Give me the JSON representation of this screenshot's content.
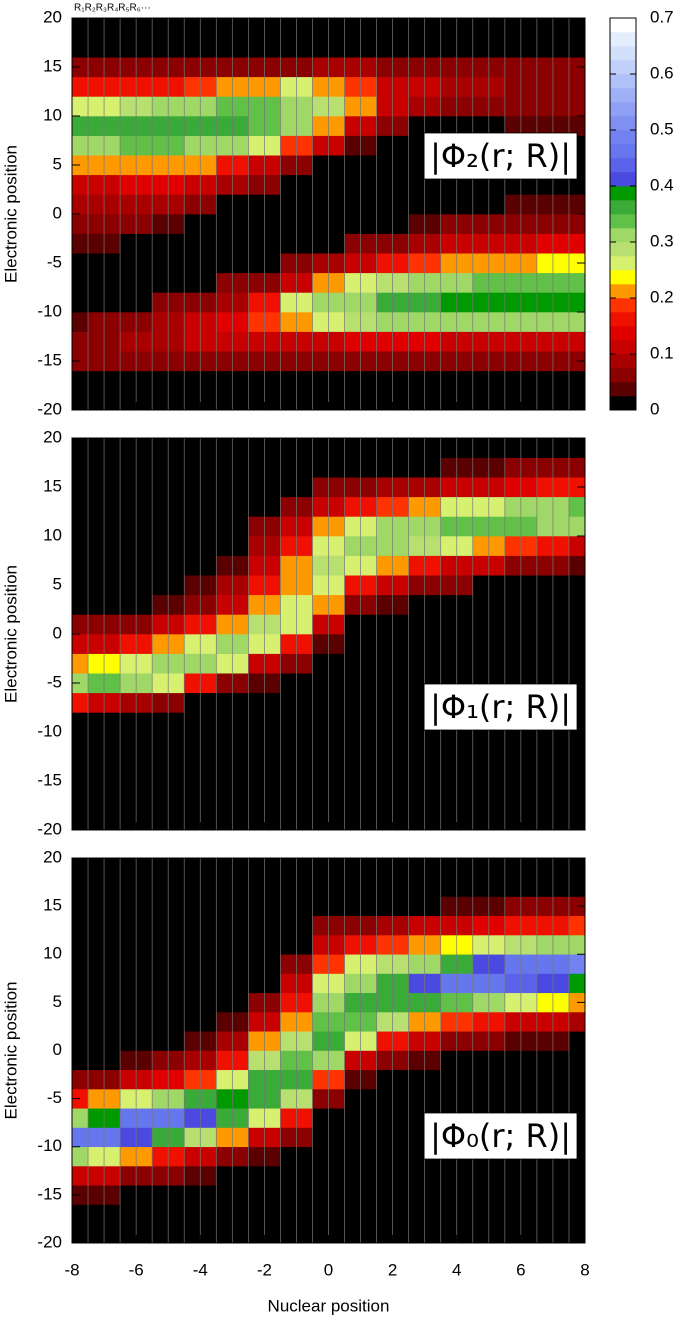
{
  "chart_data": [
    {
      "type": "heatmap",
      "top_annotation": "R₁R₂R₃R₄R₅R₆···",
      "annotation": "|Φ₂(r; R)|",
      "ylabel": "Electronic position",
      "show_xtick_labels": false,
      "x": [
        -8,
        -7,
        -6,
        -5,
        -4,
        -3,
        -2,
        -1,
        0,
        1,
        2,
        3,
        4,
        5,
        6,
        7,
        8
      ],
      "y": [
        -19,
        -17,
        -15,
        -13,
        -11,
        -9,
        -7,
        -5,
        -3,
        -1,
        1,
        3,
        5,
        7,
        9,
        11,
        13,
        15,
        17,
        19
      ],
      "z": [
        [
          0,
          0,
          0.05,
          0.05,
          0.03,
          0,
          0,
          0,
          0.03,
          0.05,
          0.08,
          0.12,
          0.2,
          0.3,
          0.35,
          0.25,
          0.15,
          0.05,
          0,
          0
        ],
        [
          0,
          0,
          0.05,
          0.07,
          0.05,
          0,
          0,
          0,
          0.03,
          0.05,
          0.08,
          0.12,
          0.2,
          0.32,
          0.35,
          0.27,
          0.15,
          0.05,
          0,
          0
        ],
        [
          0,
          0,
          0.05,
          0.08,
          0.07,
          0,
          0,
          0,
          0,
          0.05,
          0.08,
          0.13,
          0.22,
          0.33,
          0.36,
          0.28,
          0.15,
          0.05,
          0,
          0
        ],
        [
          0,
          0,
          0.05,
          0.08,
          0.08,
          0.05,
          0,
          0,
          0,
          0.04,
          0.08,
          0.13,
          0.22,
          0.33,
          0.36,
          0.3,
          0.17,
          0.05,
          0,
          0
        ],
        [
          0,
          0,
          0.05,
          0.1,
          0.1,
          0.06,
          0,
          0,
          0,
          0,
          0.05,
          0.1,
          0.2,
          0.32,
          0.36,
          0.32,
          0.18,
          0.05,
          0,
          0
        ],
        [
          0,
          0,
          0.05,
          0.1,
          0.13,
          0.08,
          0.05,
          0,
          0,
          0,
          0,
          0.08,
          0.15,
          0.3,
          0.35,
          0.33,
          0.2,
          0.05,
          0,
          0
        ],
        [
          0,
          0,
          0.05,
          0.1,
          0.18,
          0.15,
          0.07,
          0,
          0,
          0,
          0,
          0.05,
          0.1,
          0.25,
          0.33,
          0.33,
          0.22,
          0.07,
          0,
          0
        ],
        [
          0,
          0,
          0.05,
          0.12,
          0.22,
          0.25,
          0.12,
          0.05,
          0,
          0,
          0,
          0,
          0.05,
          0.18,
          0.3,
          0.3,
          0.25,
          0.07,
          0,
          0
        ],
        [
          0,
          0,
          0.05,
          0.12,
          0.25,
          0.3,
          0.2,
          0.08,
          0,
          0,
          0,
          0,
          0,
          0.1,
          0.22,
          0.28,
          0.22,
          0.08,
          0,
          0
        ],
        [
          0,
          0,
          0.05,
          0.13,
          0.28,
          0.32,
          0.25,
          0.12,
          0.05,
          0,
          0,
          0,
          0,
          0.03,
          0.12,
          0.2,
          0.18,
          0.08,
          0,
          0
        ],
        [
          0,
          0,
          0.05,
          0.13,
          0.3,
          0.35,
          0.28,
          0.15,
          0.07,
          0,
          0,
          0,
          0,
          0,
          0.05,
          0.1,
          0.12,
          0.07,
          0,
          0
        ],
        [
          0,
          0,
          0.05,
          0.13,
          0.3,
          0.37,
          0.3,
          0.18,
          0.08,
          0.03,
          0,
          0,
          0,
          0,
          0,
          0.08,
          0.1,
          0.06,
          0,
          0
        ],
        [
          0,
          0,
          0.05,
          0.12,
          0.3,
          0.38,
          0.32,
          0.2,
          0.1,
          0.05,
          0,
          0,
          0,
          0,
          0,
          0.05,
          0.08,
          0.05,
          0,
          0
        ],
        [
          0,
          0,
          0.05,
          0.12,
          0.3,
          0.38,
          0.33,
          0.22,
          0.12,
          0.05,
          0,
          0,
          0,
          0,
          0,
          0.05,
          0.08,
          0.05,
          0,
          0
        ],
        [
          0,
          0,
          0.05,
          0.12,
          0.3,
          0.38,
          0.33,
          0.22,
          0.12,
          0.06,
          0.03,
          0,
          0,
          0,
          0.03,
          0.05,
          0.07,
          0.05,
          0,
          0
        ],
        [
          0,
          0,
          0.05,
          0.12,
          0.3,
          0.38,
          0.33,
          0.23,
          0.13,
          0.07,
          0.03,
          0,
          0,
          0,
          0.03,
          0.05,
          0.07,
          0.05,
          0,
          0
        ],
        [
          0,
          0,
          0.05,
          0.12,
          0.3,
          0.38,
          0.33,
          0.23,
          0.13,
          0.07,
          0.03,
          0,
          0,
          0,
          0.03,
          0.05,
          0.07,
          0.05,
          0,
          0
        ]
      ],
      "xlim": [
        -8,
        8
      ],
      "ylim": [
        -20,
        20
      ],
      "xticks": [
        -8,
        -6,
        -4,
        -2,
        0,
        2,
        4,
        6,
        8
      ],
      "yticks": [
        -20,
        -15,
        -10,
        -5,
        0,
        5,
        10,
        15,
        20
      ],
      "colorbar": {
        "zlim": [
          0,
          0.7
        ],
        "zticks": [
          0,
          0.1,
          0.2,
          0.3,
          0.4,
          0.5,
          0.6,
          0.7
        ],
        "colors": [
          "#000000",
          "#5a0000",
          "#8b0000",
          "#a80000",
          "#c80000",
          "#e00000",
          "#f01000",
          "#ff3300",
          "#ff9900",
          "#ffff00",
          "#d8f070",
          "#b8e070",
          "#a0d868",
          "#60c048",
          "#3aaa38",
          "#009900",
          "#4a4ae0",
          "#5a62ea",
          "#6677ee",
          "#7282f0",
          "#8090f2",
          "#90a0f4",
          "#a0b0f6",
          "#b0c0f8",
          "#c0d0fa",
          "#d2e0fc",
          "#e4eefd",
          "#ffffff"
        ]
      }
    },
    {
      "type": "heatmap",
      "annotation": "|Φ₁(r; R)|",
      "ylabel": "Electronic position",
      "show_xtick_labels": false,
      "x": [
        -8,
        -7,
        -6,
        -5,
        -4,
        -3,
        -2,
        -1,
        0,
        1,
        2,
        3,
        4,
        5,
        6,
        7,
        8
      ],
      "y": [
        -19,
        -17,
        -15,
        -13,
        -11,
        -9,
        -7,
        -5,
        -3,
        -1,
        1,
        3,
        5,
        7,
        9,
        11,
        13,
        15,
        17,
        19
      ],
      "z": [
        [
          0,
          0,
          0,
          0,
          0,
          0,
          0.15,
          0.32,
          0.2,
          0.1,
          0.05,
          0,
          0,
          0,
          0,
          0,
          0,
          0,
          0,
          0
        ],
        [
          0,
          0,
          0,
          0,
          0,
          0,
          0.12,
          0.33,
          0.23,
          0.12,
          0.05,
          0,
          0,
          0,
          0,
          0,
          0,
          0,
          0,
          0
        ],
        [
          0,
          0,
          0,
          0,
          0,
          0,
          0.08,
          0.32,
          0.27,
          0.15,
          0.07,
          0,
          0,
          0,
          0,
          0,
          0,
          0,
          0,
          0
        ],
        [
          0,
          0,
          0,
          0,
          0,
          0,
          0.05,
          0.25,
          0.3,
          0.2,
          0.1,
          0.04,
          0,
          0,
          0,
          0,
          0,
          0,
          0,
          0
        ],
        [
          0,
          0,
          0,
          0,
          0,
          0,
          0,
          0.15,
          0.32,
          0.27,
          0.15,
          0.07,
          0.03,
          0,
          0,
          0,
          0,
          0,
          0,
          0
        ],
        [
          0,
          0,
          0,
          0,
          0,
          0,
          0,
          0.07,
          0.25,
          0.3,
          0.22,
          0.12,
          0.08,
          0.04,
          0,
          0,
          0,
          0,
          0,
          0
        ],
        [
          0,
          0,
          0,
          0,
          0,
          0,
          0,
          0.03,
          0.12,
          0.27,
          0.28,
          0.22,
          0.15,
          0.1,
          0.08,
          0.05,
          0,
          0,
          0,
          0
        ],
        [
          0,
          0,
          0,
          0,
          0,
          0,
          0,
          0,
          0.05,
          0.15,
          0.25,
          0.25,
          0.22,
          0.2,
          0.15,
          0.1,
          0.05,
          0,
          0,
          0
        ],
        [
          0,
          0,
          0,
          0,
          0,
          0,
          0,
          0,
          0,
          0.03,
          0.1,
          0.2,
          0.27,
          0.28,
          0.27,
          0.2,
          0.1,
          0.05,
          0,
          0
        ],
        [
          0,
          0,
          0,
          0,
          0,
          0,
          0,
          0,
          0,
          0,
          0,
          0.07,
          0.15,
          0.25,
          0.3,
          0.27,
          0.15,
          0.07,
          0,
          0
        ],
        [
          0,
          0,
          0,
          0,
          0,
          0,
          0,
          0,
          0,
          0,
          0,
          0.03,
          0.1,
          0.2,
          0.3,
          0.3,
          0.18,
          0.08,
          0,
          0
        ],
        [
          0,
          0,
          0,
          0,
          0,
          0,
          0,
          0,
          0,
          0,
          0,
          0,
          0.07,
          0.15,
          0.28,
          0.32,
          0.2,
          0.08,
          0,
          0
        ],
        [
          0,
          0,
          0,
          0,
          0,
          0,
          0,
          0,
          0,
          0,
          0,
          0,
          0.05,
          0.12,
          0.25,
          0.33,
          0.25,
          0.1,
          0.03,
          0
        ],
        [
          0,
          0,
          0,
          0,
          0,
          0,
          0,
          0,
          0,
          0,
          0,
          0,
          0,
          0.1,
          0.22,
          0.33,
          0.27,
          0.12,
          0.04,
          0
        ],
        [
          0,
          0,
          0,
          0,
          0,
          0,
          0,
          0,
          0,
          0,
          0,
          0,
          0,
          0.07,
          0.18,
          0.33,
          0.3,
          0.13,
          0.05,
          0
        ],
        [
          0,
          0,
          0,
          0,
          0,
          0,
          0,
          0,
          0,
          0,
          0,
          0,
          0,
          0.05,
          0.15,
          0.32,
          0.32,
          0.15,
          0.06,
          0
        ],
        [
          0,
          0,
          0,
          0,
          0,
          0,
          0,
          0,
          0,
          0,
          0,
          0,
          0,
          0.04,
          0.12,
          0.3,
          0.33,
          0.17,
          0.07,
          0
        ]
      ],
      "xlim": [
        -8,
        8
      ],
      "ylim": [
        -20,
        20
      ],
      "xticks": [
        -8,
        -6,
        -4,
        -2,
        0,
        2,
        4,
        6,
        8
      ],
      "yticks": [
        -20,
        -15,
        -10,
        -5,
        0,
        5,
        10,
        15,
        20
      ]
    },
    {
      "type": "heatmap",
      "annotation": "|Φ₀(r; R)|",
      "ylabel": "Electronic position",
      "xlabel": "Nuclear position",
      "show_xtick_labels": true,
      "x": [
        -8,
        -7,
        -6,
        -5,
        -4,
        -3,
        -2,
        -1,
        0,
        1,
        2,
        3,
        4,
        5,
        6,
        7,
        8
      ],
      "y": [
        -19,
        -17,
        -15,
        -13,
        -11,
        -9,
        -7,
        -5,
        -3,
        -1,
        1,
        3,
        5,
        7,
        9,
        11,
        13,
        15,
        17,
        19
      ],
      "z": [
        [
          0,
          0,
          0.04,
          0.12,
          0.3,
          0.45,
          0.3,
          0.15,
          0.05,
          0,
          0,
          0,
          0,
          0,
          0,
          0,
          0,
          0,
          0,
          0
        ],
        [
          0,
          0,
          0.03,
          0.1,
          0.27,
          0.45,
          0.38,
          0.2,
          0.07,
          0,
          0,
          0,
          0,
          0,
          0,
          0,
          0,
          0,
          0,
          0
        ],
        [
          0,
          0,
          0,
          0.07,
          0.2,
          0.4,
          0.45,
          0.25,
          0.1,
          0.03,
          0,
          0,
          0,
          0,
          0,
          0,
          0,
          0,
          0,
          0
        ],
        [
          0,
          0,
          0,
          0.05,
          0.15,
          0.35,
          0.45,
          0.3,
          0.13,
          0.05,
          0,
          0,
          0,
          0,
          0,
          0,
          0,
          0,
          0,
          0
        ],
        [
          0,
          0,
          0,
          0.03,
          0.12,
          0.28,
          0.42,
          0.35,
          0.18,
          0.08,
          0.03,
          0,
          0,
          0,
          0,
          0,
          0,
          0,
          0,
          0
        ],
        [
          0,
          0,
          0,
          0,
          0.07,
          0.2,
          0.36,
          0.38,
          0.27,
          0.15,
          0.08,
          0.04,
          0,
          0,
          0,
          0,
          0,
          0,
          0,
          0
        ],
        [
          0,
          0,
          0,
          0,
          0.04,
          0.12,
          0.25,
          0.35,
          0.35,
          0.28,
          0.2,
          0.1,
          0.05,
          0,
          0,
          0,
          0,
          0,
          0,
          0
        ],
        [
          0,
          0,
          0,
          0,
          0,
          0.05,
          0.15,
          0.28,
          0.35,
          0.33,
          0.28,
          0.22,
          0.15,
          0.1,
          0.05,
          0,
          0,
          0,
          0,
          0
        ],
        [
          0,
          0,
          0,
          0,
          0,
          0,
          0,
          0.07,
          0.18,
          0.3,
          0.35,
          0.33,
          0.3,
          0.25,
          0.18,
          0.1,
          0.05,
          0,
          0,
          0
        ],
        [
          0,
          0,
          0,
          0,
          0,
          0,
          0,
          0,
          0.04,
          0.12,
          0.25,
          0.33,
          0.35,
          0.32,
          0.25,
          0.15,
          0.07,
          0,
          0,
          0
        ],
        [
          0,
          0,
          0,
          0,
          0,
          0,
          0,
          0,
          0,
          0.06,
          0.15,
          0.28,
          0.37,
          0.37,
          0.28,
          0.18,
          0.08,
          0,
          0,
          0
        ],
        [
          0,
          0,
          0,
          0,
          0,
          0,
          0,
          0,
          0,
          0.03,
          0.1,
          0.22,
          0.35,
          0.4,
          0.32,
          0.2,
          0.1,
          0,
          0,
          0
        ],
        [
          0,
          0,
          0,
          0,
          0,
          0,
          0,
          0,
          0,
          0,
          0.07,
          0.18,
          0.33,
          0.45,
          0.35,
          0.23,
          0.12,
          0.03,
          0,
          0
        ],
        [
          0,
          0,
          0,
          0,
          0,
          0,
          0,
          0,
          0,
          0,
          0.05,
          0.15,
          0.3,
          0.47,
          0.4,
          0.25,
          0.13,
          0.04,
          0,
          0
        ],
        [
          0,
          0,
          0,
          0,
          0,
          0,
          0,
          0,
          0,
          0,
          0.04,
          0.12,
          0.27,
          0.43,
          0.45,
          0.28,
          0.15,
          0.05,
          0,
          0
        ],
        [
          0,
          0,
          0,
          0,
          0,
          0,
          0,
          0,
          0,
          0,
          0.03,
          0.1,
          0.23,
          0.4,
          0.47,
          0.3,
          0.17,
          0.06,
          0,
          0
        ],
        [
          0,
          0,
          0,
          0,
          0,
          0,
          0,
          0,
          0,
          0,
          0,
          0.08,
          0.2,
          0.38,
          0.48,
          0.32,
          0.18,
          0.07,
          0,
          0
        ]
      ],
      "xlim": [
        -8,
        8
      ],
      "ylim": [
        -20,
        20
      ],
      "xticks": [
        -8,
        -6,
        -4,
        -2,
        0,
        2,
        4,
        6,
        8
      ],
      "yticks": [
        -20,
        -15,
        -10,
        -5,
        0,
        5,
        10,
        15,
        20
      ]
    }
  ]
}
